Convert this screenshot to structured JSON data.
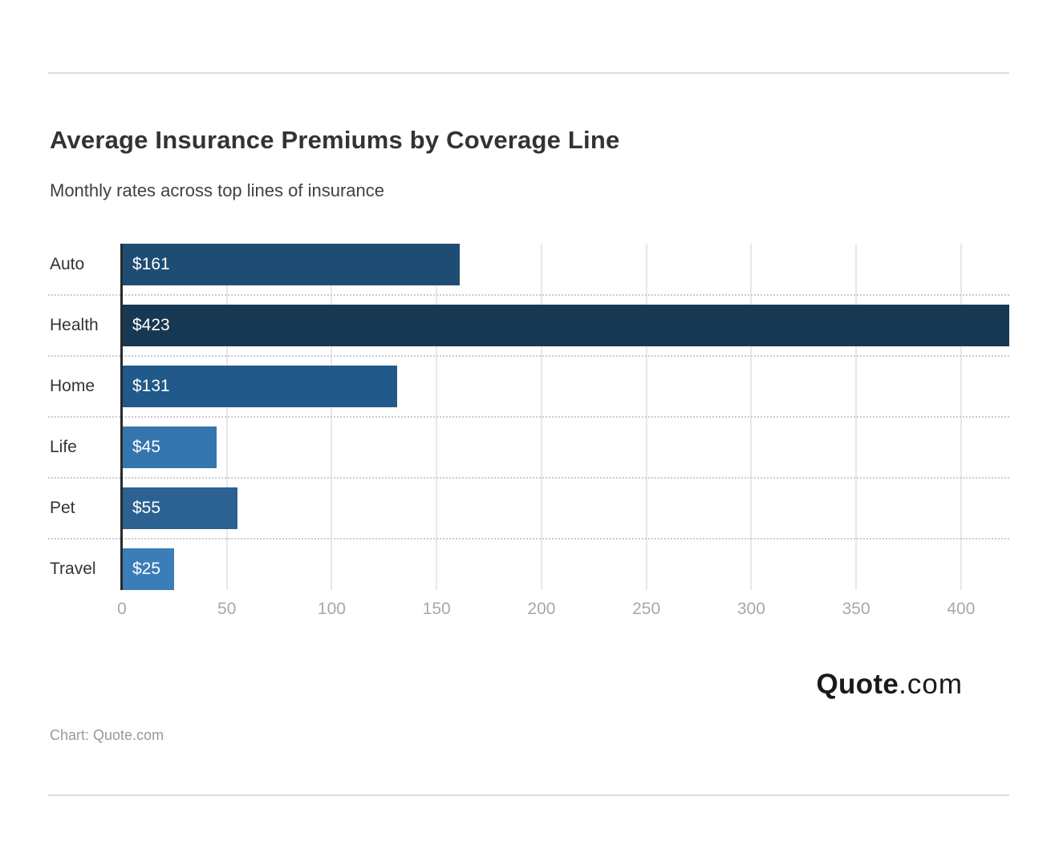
{
  "page": {
    "title": "Average Insurance Premiums by Coverage Line",
    "subtitle": "Monthly rates across top lines of insurance",
    "attribution": "Chart: Quote.com",
    "logo": {
      "primary": "Quote",
      "secondary": ".com"
    }
  },
  "chart_data": {
    "type": "bar",
    "orientation": "horizontal",
    "title": "Average Insurance Premiums by Coverage Line",
    "subtitle": "Monthly rates across top lines of insurance",
    "categories": [
      "Auto",
      "Health",
      "Home",
      "Life",
      "Pet",
      "Travel"
    ],
    "values": [
      161,
      423,
      131,
      45,
      55,
      25
    ],
    "value_labels": [
      "$161",
      "$423",
      "$131",
      "$45",
      "$55",
      "$25"
    ],
    "bar_colors": [
      "#1E4C72",
      "#173852",
      "#20598A",
      "#3575AE",
      "#2B6292",
      "#3B7DB8"
    ],
    "x_ticks": [
      0,
      50,
      100,
      150,
      200,
      250,
      300,
      350,
      400
    ],
    "xlim": [
      0,
      423
    ],
    "xlabel": "",
    "ylabel": "",
    "grid": "vertical-gridlines",
    "legend": "none",
    "style": {
      "grid_color": "#e8e8e8",
      "separator_color": "#cccccc",
      "axis_line_color": "#2a2a2a",
      "tick_label_color": "#a8a8a8",
      "category_label_color": "#333333",
      "value_label_color": "#ffffff",
      "title_color": "#333333",
      "subtitle_color": "#404040",
      "attribution_color": "#999999",
      "divider_color": "#dcdcdc"
    }
  }
}
